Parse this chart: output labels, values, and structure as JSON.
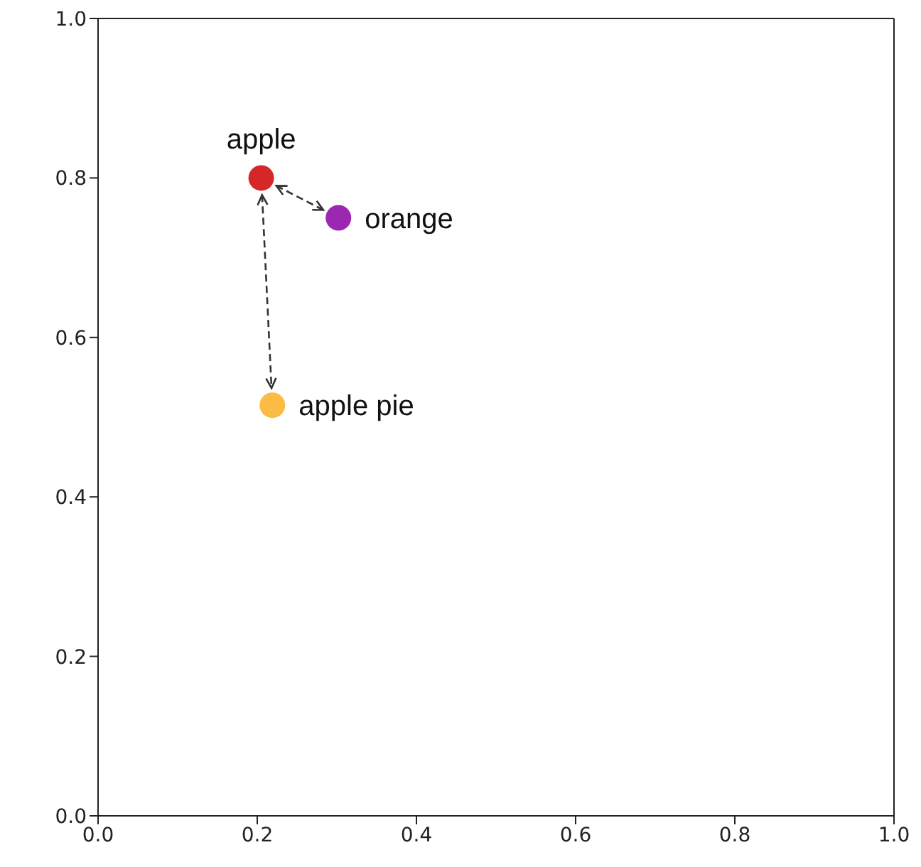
{
  "chart_data": {
    "type": "scatter",
    "series": [
      {
        "name": "apple",
        "color": "#d62728",
        "x": [
          0.205
        ],
        "values": [
          0.8
        ]
      },
      {
        "name": "orange",
        "color": "#9c27b0",
        "x": [
          0.302
        ],
        "values": [
          0.75
        ]
      },
      {
        "name": "apple pie",
        "color": "#fbbc45",
        "x": [
          0.219
        ],
        "values": [
          0.515
        ]
      }
    ],
    "xlim": [
      0,
      1
    ],
    "ylim": [
      0,
      1
    ],
    "xticks": [
      {
        "value": 0,
        "label": "0.0"
      },
      0.2,
      0.4,
      0.6,
      0.8,
      {
        "value": 1,
        "label": "1.0"
      }
    ],
    "yticks": [
      {
        "value": 0,
        "label": "0.0"
      },
      0.2,
      0.4,
      0.6,
      0.8,
      {
        "value": 1,
        "label": "1.0"
      }
    ],
    "marker": "circle"
  }
}
